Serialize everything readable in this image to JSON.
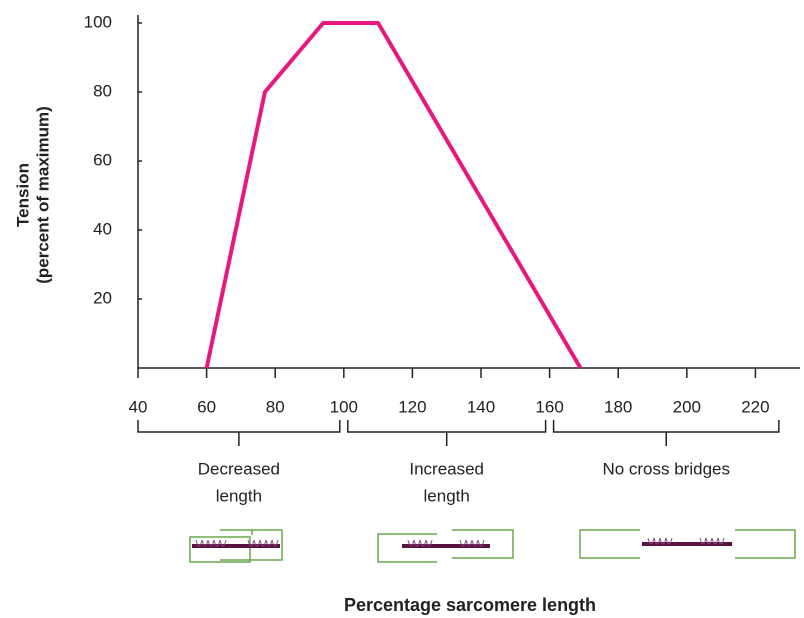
{
  "chart_data": {
    "type": "line",
    "x": [
      60,
      77,
      94,
      110,
      169
    ],
    "values": [
      0,
      80,
      100,
      100,
      0
    ],
    "color": "#e8197c",
    "xlim": [
      40,
      233
    ],
    "ylim": [
      0,
      100
    ],
    "xticks": [
      40,
      60,
      80,
      100,
      120,
      140,
      160,
      180,
      200,
      220
    ],
    "yticks": [
      20,
      40,
      60,
      80,
      100
    ],
    "x_label": "Percentage sarcomere length",
    "y_label": [
      "Tension",
      "(percent of maximum)"
    ],
    "regions": [
      {
        "label": [
          "Decreased",
          "length"
        ],
        "range": [
          40,
          100
        ]
      },
      {
        "label": [
          "Increased",
          "length"
        ],
        "range": [
          100,
          160
        ]
      },
      {
        "label": [
          "No cross bridges"
        ],
        "range": [
          160,
          228
        ]
      }
    ]
  }
}
